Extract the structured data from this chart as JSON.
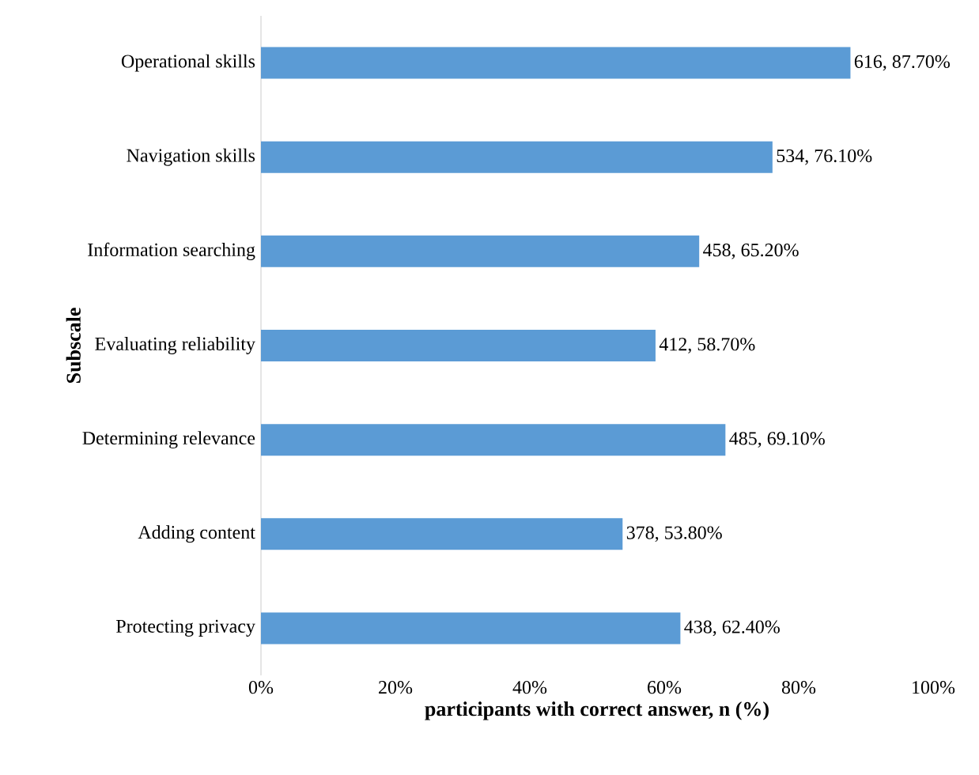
{
  "chart_data": {
    "type": "bar",
    "orientation": "horizontal",
    "xlabel": "participants with correct answer, n (%)",
    "ylabel": "Subscale",
    "categories": [
      "Operational skills",
      "Navigation skills",
      "Information searching",
      "Evaluating reliability",
      "Determining relevance",
      "Adding content",
      "Protecting privacy"
    ],
    "values": [
      87.7,
      76.1,
      65.2,
      58.7,
      69.1,
      53.8,
      62.4
    ],
    "value_labels": [
      "616, 87.70%",
      "534, 76.10%",
      "458, 65.20%",
      "412, 58.70%",
      "485, 69.10%",
      "378, 53.80%",
      "438, 62.40%"
    ],
    "color": "#5b9bd5",
    "xlim": [
      0,
      100
    ],
    "xticks": [
      {
        "value": 0,
        "label": "0%"
      },
      {
        "value": 20,
        "label": "20%"
      },
      {
        "value": 40,
        "label": "40%"
      },
      {
        "value": 60,
        "label": "60%"
      },
      {
        "value": 80,
        "label": "80%"
      },
      {
        "value": 100,
        "label": "100%"
      }
    ],
    "grid": false
  }
}
